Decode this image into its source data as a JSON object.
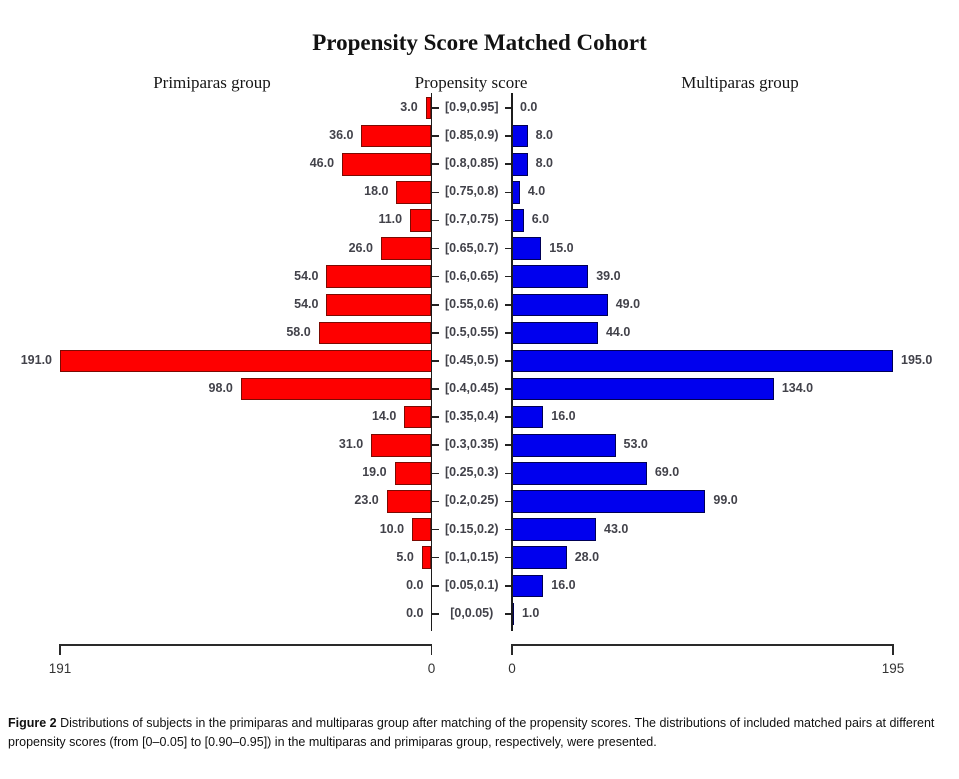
{
  "title": "Propensity Score Matched Cohort",
  "headers": {
    "left": "Primiparas group",
    "center": "Propensity score",
    "right": "Multiparas group"
  },
  "chart_data": {
    "type": "bar",
    "variant": "back-to-back horizontal pyramid",
    "title": "Propensity Score Matched Cohort",
    "center_axis_label": "Propensity score",
    "grid": false,
    "legend": "none",
    "categories": [
      "[0.9,0.95]",
      "[0.85,0.9)",
      "[0.8,0.85)",
      "[0.75,0.8)",
      "[0.7,0.75)",
      "[0.65,0.7)",
      "[0.6,0.65)",
      "[0.55,0.6)",
      "[0.5,0.55)",
      "[0.45,0.5)",
      "[0.4,0.45)",
      "[0.35,0.4)",
      "[0.3,0.35)",
      "[0.25,0.3)",
      "[0.2,0.25)",
      "[0.15,0.2)",
      "[0.1,0.15)",
      "[0.05,0.1)",
      "[0,0.05)"
    ],
    "series": [
      {
        "name": "Primiparas group",
        "side": "left",
        "color": "#fe0000",
        "border_color": "#7b0a02",
        "values": [
          3.0,
          36.0,
          46.0,
          18.0,
          11.0,
          26.0,
          54.0,
          54.0,
          58.0,
          191.0,
          98.0,
          14.0,
          31.0,
          19.0,
          23.0,
          10.0,
          5.0,
          0.0,
          0.0
        ],
        "axis_max": 191,
        "axis_ticks": [
          "191",
          "0"
        ]
      },
      {
        "name": "Multiparas group",
        "side": "right",
        "color": "#0000ee",
        "border_color": "#000055",
        "values": [
          0.0,
          8.0,
          8.0,
          4.0,
          6.0,
          15.0,
          39.0,
          49.0,
          44.0,
          195.0,
          134.0,
          16.0,
          53.0,
          69.0,
          99.0,
          43.0,
          28.0,
          16.0,
          1.0
        ],
        "axis_max": 195,
        "axis_ticks": [
          "0",
          "195"
        ]
      }
    ]
  },
  "caption": {
    "label": "Figure 2",
    "text": "Distributions of subjects in the primiparas and multiparas group after matching of the propensity scores. The distributions of included matched pairs at different propensity scores (from [0–0.05] to [0.90–0.95]) in the multiparas and primiparas group, respectively, were presented."
  }
}
